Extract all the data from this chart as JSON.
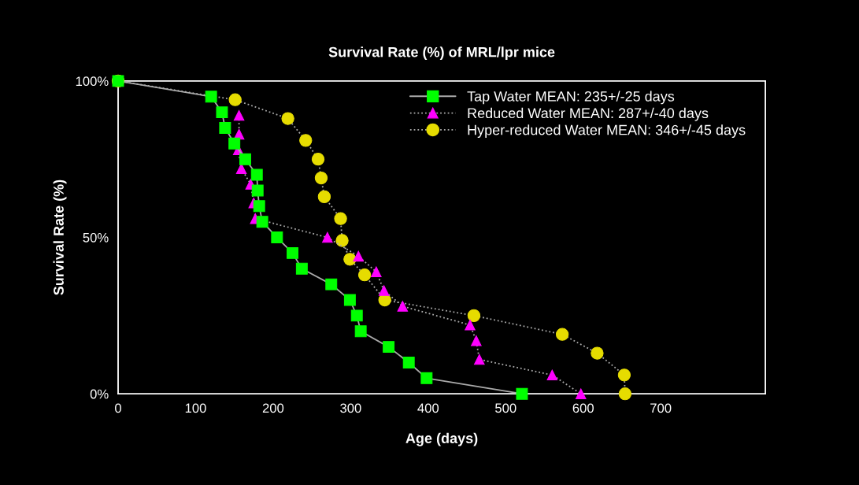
{
  "chart_data": {
    "type": "line",
    "title": "Survival Rate (%) of MRL/lpr mice",
    "xlabel": "Age (days)",
    "ylabel": "Survival Rate (%)",
    "xlim": [
      0,
      835
    ],
    "xticks": [
      0,
      100,
      200,
      300,
      400,
      500,
      600,
      700
    ],
    "ylim": [
      0,
      100
    ],
    "yticks": [
      {
        "value": 0,
        "label": "0%"
      },
      {
        "value": 50,
        "label": "50%"
      },
      {
        "value": 100,
        "label": "100%"
      }
    ],
    "grid": false,
    "legend": "top right",
    "series": [
      {
        "name": "Tap Water MEAN: 235+/-25 days",
        "color": "#00ff00",
        "marker": "square",
        "line_style": "solid",
        "x": [
          0,
          120,
          134,
          138,
          150,
          164,
          179,
          180,
          182,
          186,
          205,
          225,
          237,
          275,
          299,
          308,
          313,
          349,
          375,
          398,
          521
        ],
        "values": [
          100,
          95,
          90,
          85,
          80,
          75,
          70,
          65,
          60,
          55,
          50,
          45,
          40,
          35,
          30,
          25,
          20,
          15,
          10,
          5,
          0
        ]
      },
      {
        "name": "Reduced Water MEAN: 287+/-40 days",
        "color": "#ff00ff",
        "marker": "triangle",
        "line_style": "dotted",
        "x": [
          156,
          156,
          155,
          159,
          171,
          175,
          177,
          270,
          310,
          333,
          343,
          367,
          454,
          462,
          466,
          560,
          597
        ],
        "values": [
          89,
          83,
          78,
          72,
          67,
          61,
          56,
          50,
          44,
          39,
          33,
          28,
          22,
          17,
          11,
          6,
          0
        ]
      },
      {
        "name": "Hyper-reduced Water MEAN: 346+/-45 days",
        "color": "#e6dc00",
        "marker": "circle",
        "line_style": "dotted",
        "x": [
          0,
          151,
          219,
          242,
          258,
          262,
          266,
          287,
          289,
          299,
          318,
          344,
          459,
          573,
          618,
          653,
          654
        ],
        "values": [
          100,
          94,
          88,
          81,
          75,
          69,
          63,
          56,
          49,
          43,
          38,
          30,
          25,
          19,
          13,
          6,
          0
        ]
      }
    ]
  }
}
